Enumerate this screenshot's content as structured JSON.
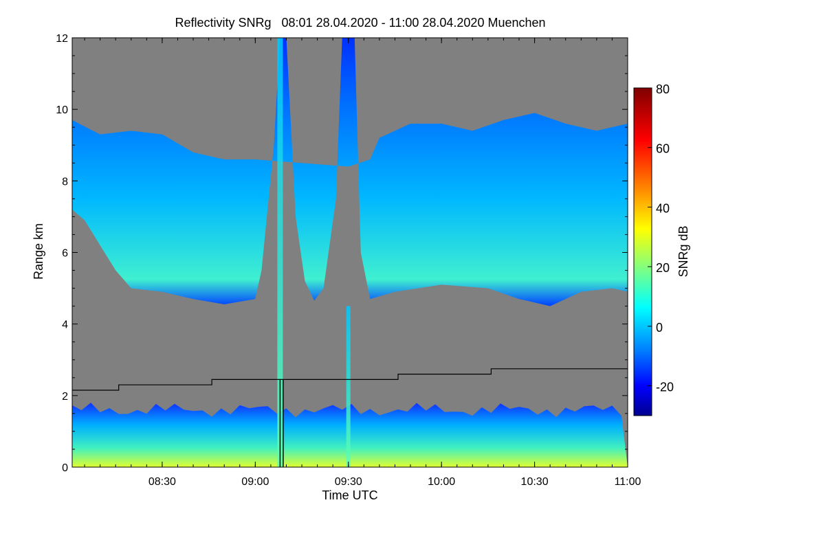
{
  "chart_data": {
    "type": "heatmap",
    "title": "Reflectivity SNRg   08:01 28.04.2020 - 11:00 28.04.2020 Muenchen",
    "xlabel": "Time UTC",
    "ylabel": "Range km",
    "xlim": [
      "08:01",
      "11:00"
    ],
    "ylim": [
      0,
      12
    ],
    "x_ticks": [
      "08:30",
      "09:00",
      "09:30",
      "10:00",
      "10:30",
      "11:00"
    ],
    "y_ticks": [
      0,
      2,
      4,
      6,
      8,
      10,
      12
    ],
    "colorbar": {
      "label": "SNRg dB",
      "range": [
        -30,
        80
      ],
      "ticks": [
        -20,
        0,
        20,
        40,
        60,
        80
      ],
      "colormap": [
        "#00008f",
        "#0000ff",
        "#0080ff",
        "#00ffff",
        "#80ff80",
        "#ffff00",
        "#ff8000",
        "#ff0000",
        "#800000"
      ]
    },
    "background_color": "#808080",
    "cloud_layer": {
      "base_km": [
        [
          "08:01",
          7.2
        ],
        [
          "08:05",
          6.9
        ],
        [
          "08:10",
          6.2
        ],
        [
          "08:15",
          5.5
        ],
        [
          "08:20",
          5.0
        ],
        [
          "08:30",
          4.9
        ],
        [
          "08:40",
          4.7
        ],
        [
          "08:50",
          4.55
        ],
        [
          "09:00",
          4.7
        ],
        [
          "09:02",
          5.5
        ],
        [
          "09:06",
          9.0
        ],
        [
          "09:08",
          12.0
        ],
        [
          "09:10",
          12.0
        ],
        [
          "09:13",
          7.0
        ],
        [
          "09:16",
          5.2
        ],
        [
          "09:19",
          4.65
        ],
        [
          "09:22",
          5.0
        ],
        [
          "09:26",
          7.5
        ],
        [
          "09:28",
          12.0
        ],
        [
          "09:32",
          12.0
        ],
        [
          "09:34",
          6.0
        ],
        [
          "09:37",
          4.7
        ],
        [
          "09:45",
          4.9
        ],
        [
          "10:00",
          5.1
        ],
        [
          "10:15",
          5.0
        ],
        [
          "10:25",
          4.7
        ],
        [
          "10:35",
          4.5
        ],
        [
          "10:45",
          4.9
        ],
        [
          "10:55",
          5.0
        ],
        [
          "11:00",
          4.9
        ]
      ],
      "top_km": [
        [
          "08:01",
          9.7
        ],
        [
          "08:10",
          9.3
        ],
        [
          "08:20",
          9.4
        ],
        [
          "08:30",
          9.3
        ],
        [
          "08:40",
          8.8
        ],
        [
          "08:50",
          8.6
        ],
        [
          "09:00",
          8.6
        ],
        [
          "09:30",
          8.4
        ],
        [
          "09:37",
          8.6
        ],
        [
          "09:40",
          9.2
        ],
        [
          "09:50",
          9.6
        ],
        [
          "10:00",
          9.6
        ],
        [
          "10:10",
          9.4
        ],
        [
          "10:20",
          9.7
        ],
        [
          "10:30",
          9.9
        ],
        [
          "10:40",
          9.6
        ],
        [
          "10:50",
          9.4
        ],
        [
          "11:00",
          9.6
        ]
      ]
    },
    "boundary_layer_km": 1.6,
    "reference_line_km": [
      [
        "08:01",
        2.15
      ],
      [
        "08:16",
        2.15
      ],
      [
        "08:16",
        2.3
      ],
      [
        "08:46",
        2.3
      ],
      [
        "08:46",
        2.45
      ],
      [
        "09:46",
        2.45
      ],
      [
        "09:46",
        2.6
      ],
      [
        "10:16",
        2.6
      ],
      [
        "10:16",
        2.75
      ],
      [
        "11:00",
        2.75
      ]
    ],
    "vertical_markers_time": [
      "09:08",
      "09:09"
    ]
  }
}
